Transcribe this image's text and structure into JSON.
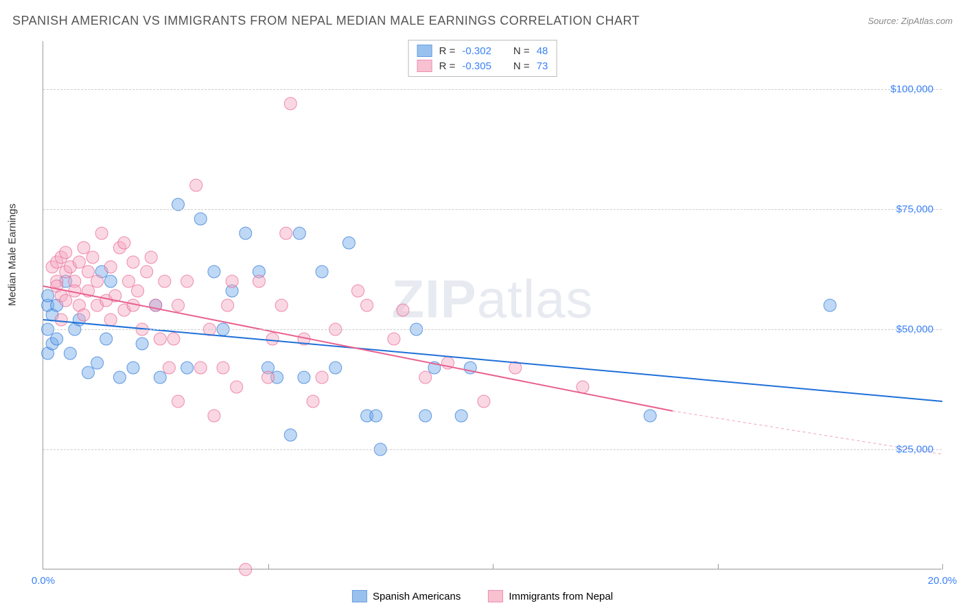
{
  "title": "SPANISH AMERICAN VS IMMIGRANTS FROM NEPAL MEDIAN MALE EARNINGS CORRELATION CHART",
  "source": "Source: ZipAtlas.com",
  "watermark": {
    "bold": "ZIP",
    "rest": "atlas"
  },
  "ylabel": "Median Male Earnings",
  "chart": {
    "type": "scatter",
    "xlim": [
      0,
      20
    ],
    "ylim": [
      0,
      110000
    ],
    "x_ticks": [
      0,
      5,
      10,
      15,
      20
    ],
    "x_tick_labels": [
      "0.0%",
      "",
      "",
      "",
      "20.0%"
    ],
    "y_ticks": [
      25000,
      50000,
      75000,
      100000
    ],
    "y_tick_labels": [
      "$25,000",
      "$50,000",
      "$75,000",
      "$100,000"
    ],
    "grid_color": "#cccccc",
    "axis_color": "#999999",
    "background_color": "#ffffff",
    "label_color": "#3b82f6",
    "marker_radius": 9,
    "marker_opacity": 0.45,
    "line_width": 2
  },
  "series": [
    {
      "name": "Spanish Americans",
      "color": "#6fa8e8",
      "stroke": "#2a74d4",
      "line_color": "#1e6fd9",
      "R": "-0.302",
      "N": "48",
      "regression": {
        "x1": 0,
        "y1": 52000,
        "x2": 20,
        "y2": 35000,
        "dash_after_x": 20
      },
      "points": [
        [
          0.1,
          45000
        ],
        [
          0.1,
          50000
        ],
        [
          0.1,
          55000
        ],
        [
          0.1,
          57000
        ],
        [
          0.2,
          47000
        ],
        [
          0.2,
          53000
        ],
        [
          0.3,
          48000
        ],
        [
          0.3,
          55000
        ],
        [
          0.5,
          60000
        ],
        [
          0.6,
          45000
        ],
        [
          0.7,
          50000
        ],
        [
          0.8,
          52000
        ],
        [
          1.0,
          41000
        ],
        [
          1.2,
          43000
        ],
        [
          1.3,
          62000
        ],
        [
          1.4,
          48000
        ],
        [
          1.5,
          60000
        ],
        [
          1.7,
          40000
        ],
        [
          2.0,
          42000
        ],
        [
          2.2,
          47000
        ],
        [
          2.5,
          55000
        ],
        [
          2.6,
          40000
        ],
        [
          3.0,
          76000
        ],
        [
          3.2,
          42000
        ],
        [
          3.5,
          73000
        ],
        [
          3.8,
          62000
        ],
        [
          4.0,
          50000
        ],
        [
          4.2,
          58000
        ],
        [
          4.5,
          70000
        ],
        [
          4.8,
          62000
        ],
        [
          5.0,
          42000
        ],
        [
          5.2,
          40000
        ],
        [
          5.5,
          28000
        ],
        [
          5.7,
          70000
        ],
        [
          6.2,
          62000
        ],
        [
          6.5,
          42000
        ],
        [
          6.8,
          68000
        ],
        [
          7.2,
          32000
        ],
        [
          7.4,
          32000
        ],
        [
          7.5,
          25000
        ],
        [
          8.3,
          50000
        ],
        [
          8.5,
          32000
        ],
        [
          8.7,
          42000
        ],
        [
          9.3,
          32000
        ],
        [
          9.5,
          42000
        ],
        [
          13.5,
          32000
        ],
        [
          17.5,
          55000
        ],
        [
          5.8,
          40000
        ]
      ]
    },
    {
      "name": "Immigrants from Nepal",
      "color": "#f5a8c0",
      "stroke": "#e85f8e",
      "line_color": "#e85f8e",
      "R": "-0.305",
      "N": "73",
      "regression": {
        "x1": 0,
        "y1": 59000,
        "x2": 14,
        "y2": 33000,
        "dash_after_x": 14,
        "dash_x2": 20,
        "dash_y2": 24000
      },
      "points": [
        [
          0.2,
          63000
        ],
        [
          0.3,
          60000
        ],
        [
          0.3,
          64000
        ],
        [
          0.3,
          59000
        ],
        [
          0.4,
          65000
        ],
        [
          0.4,
          57000
        ],
        [
          0.5,
          62000
        ],
        [
          0.5,
          66000
        ],
        [
          0.5,
          56000
        ],
        [
          0.6,
          63000
        ],
        [
          0.7,
          60000
        ],
        [
          0.7,
          58000
        ],
        [
          0.8,
          64000
        ],
        [
          0.8,
          55000
        ],
        [
          0.9,
          67000
        ],
        [
          0.9,
          53000
        ],
        [
          1.0,
          62000
        ],
        [
          1.0,
          58000
        ],
        [
          1.1,
          65000
        ],
        [
          1.2,
          55000
        ],
        [
          1.2,
          60000
        ],
        [
          1.3,
          70000
        ],
        [
          1.4,
          56000
        ],
        [
          1.5,
          63000
        ],
        [
          1.5,
          52000
        ],
        [
          1.6,
          57000
        ],
        [
          1.7,
          67000
        ],
        [
          1.8,
          68000
        ],
        [
          1.8,
          54000
        ],
        [
          1.9,
          60000
        ],
        [
          2.0,
          55000
        ],
        [
          2.0,
          64000
        ],
        [
          2.1,
          58000
        ],
        [
          2.2,
          50000
        ],
        [
          2.3,
          62000
        ],
        [
          2.4,
          65000
        ],
        [
          2.5,
          55000
        ],
        [
          2.6,
          48000
        ],
        [
          2.7,
          60000
        ],
        [
          2.8,
          42000
        ],
        [
          2.9,
          48000
        ],
        [
          3.0,
          55000
        ],
        [
          3.0,
          35000
        ],
        [
          3.2,
          60000
        ],
        [
          3.4,
          80000
        ],
        [
          3.5,
          42000
        ],
        [
          3.7,
          50000
        ],
        [
          3.8,
          32000
        ],
        [
          4.0,
          42000
        ],
        [
          4.1,
          55000
        ],
        [
          4.2,
          60000
        ],
        [
          4.3,
          38000
        ],
        [
          4.5,
          0
        ],
        [
          4.8,
          60000
        ],
        [
          5.0,
          40000
        ],
        [
          5.1,
          48000
        ],
        [
          5.3,
          55000
        ],
        [
          5.4,
          70000
        ],
        [
          5.5,
          97000
        ],
        [
          5.8,
          48000
        ],
        [
          6.0,
          35000
        ],
        [
          6.2,
          40000
        ],
        [
          6.5,
          50000
        ],
        [
          7.0,
          58000
        ],
        [
          7.2,
          55000
        ],
        [
          7.8,
          48000
        ],
        [
          8.0,
          54000
        ],
        [
          8.5,
          40000
        ],
        [
          9.0,
          43000
        ],
        [
          9.8,
          35000
        ],
        [
          10.5,
          42000
        ],
        [
          12.0,
          38000
        ],
        [
          0.4,
          52000
        ]
      ]
    }
  ],
  "legend_top": {
    "rows": [
      {
        "series_idx": 0,
        "labels": [
          "R =",
          "N ="
        ]
      },
      {
        "series_idx": 1,
        "labels": [
          "R =",
          "N ="
        ]
      }
    ]
  },
  "legend_bottom": {
    "items": [
      {
        "series_idx": 0
      },
      {
        "series_idx": 1
      }
    ]
  }
}
